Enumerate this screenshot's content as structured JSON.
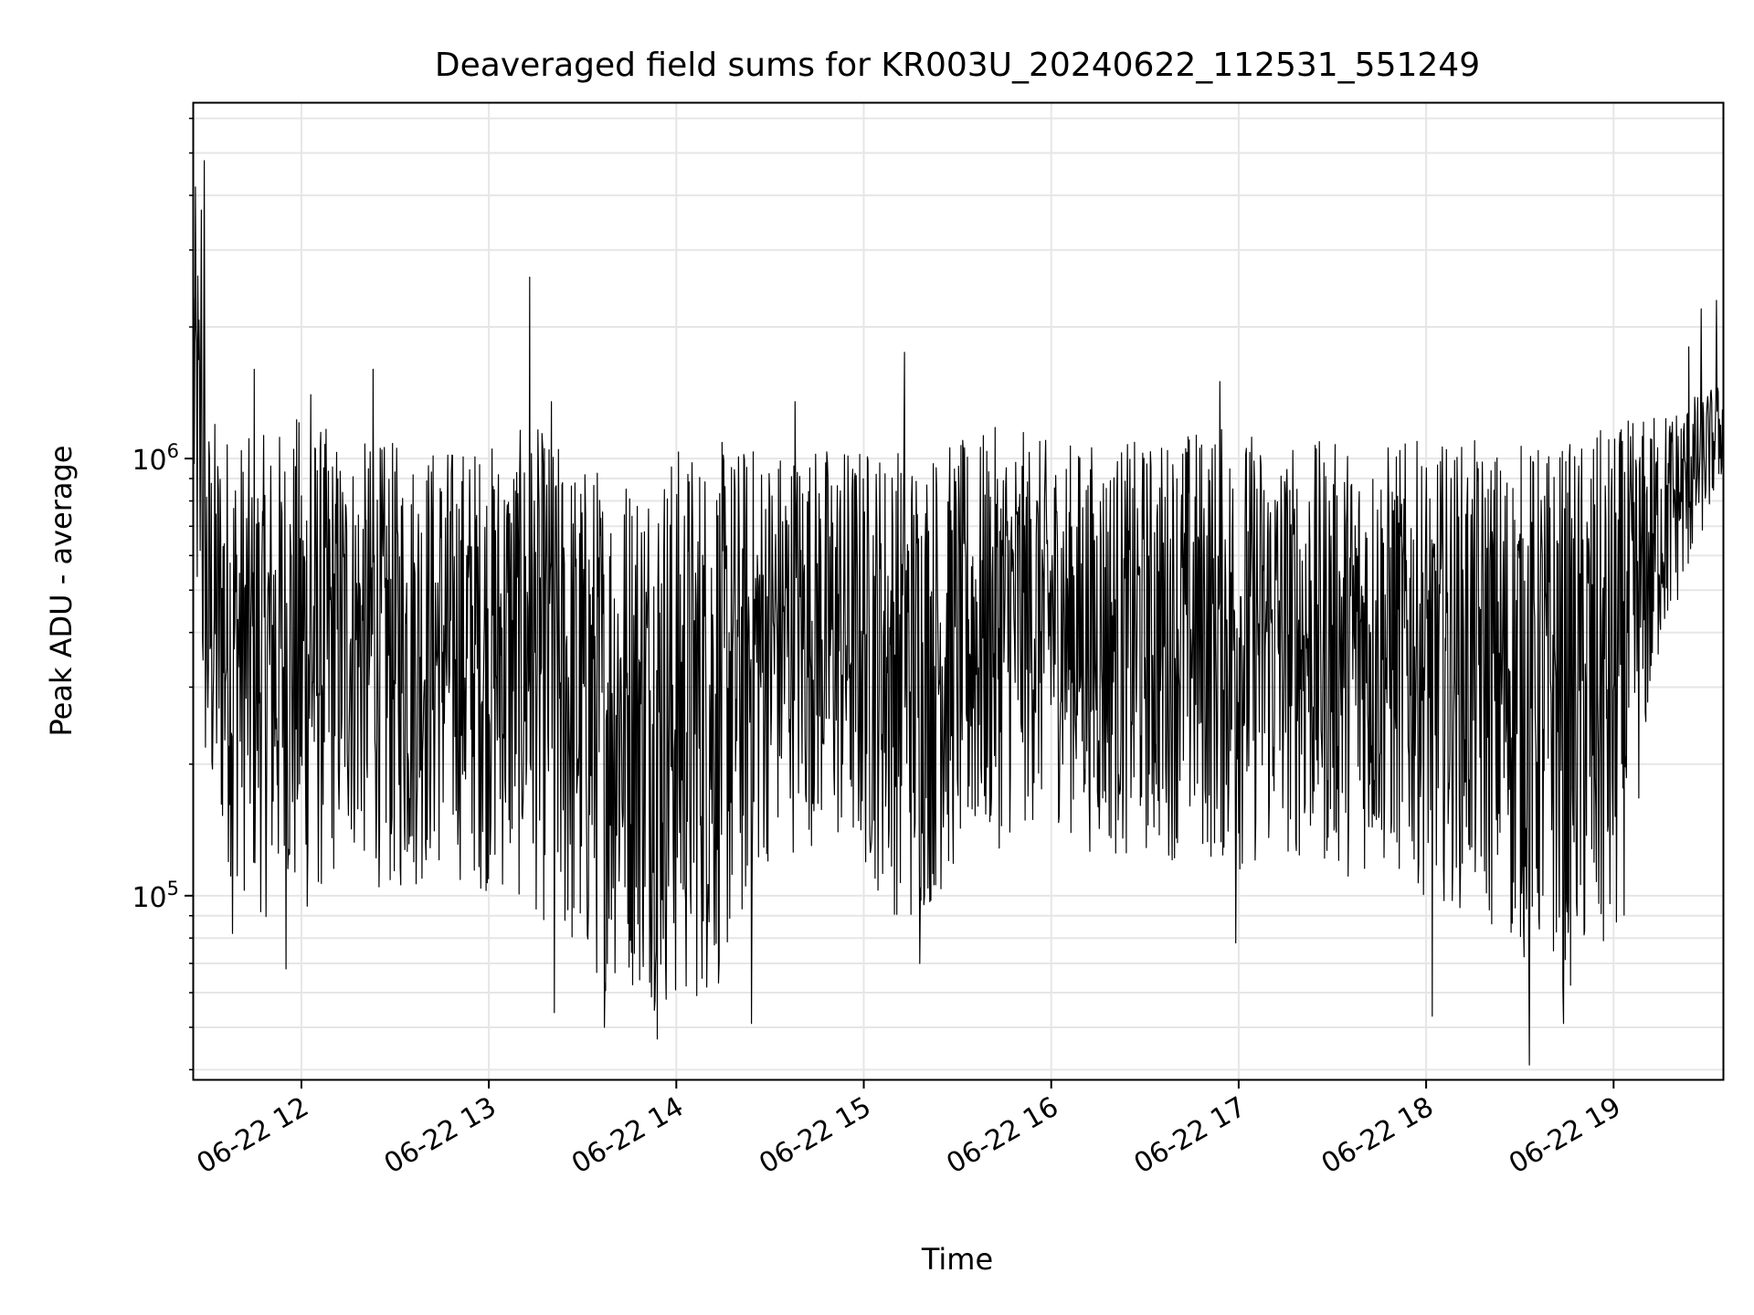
{
  "chart_data": {
    "type": "line",
    "title": "Deaveraged field sums for KR003U_20240622_112531_551249",
    "xlabel": "Time",
    "ylabel": "Peak ADU - average",
    "yscale": "log",
    "ylim": [
      38000,
      6500000
    ],
    "xlim": [
      "2024-06-22 11:25:31",
      "2024-06-22 19:35:00"
    ],
    "grid": true,
    "line_color": "#000000",
    "x_ticks": [
      {
        "value": "2024-06-22 12:00",
        "label": "06-22 12"
      },
      {
        "value": "2024-06-22 13:00",
        "label": "06-22 13"
      },
      {
        "value": "2024-06-22 14:00",
        "label": "06-22 14"
      },
      {
        "value": "2024-06-22 15:00",
        "label": "06-22 15"
      },
      {
        "value": "2024-06-22 16:00",
        "label": "06-22 16"
      },
      {
        "value": "2024-06-22 17:00",
        "label": "06-22 17"
      },
      {
        "value": "2024-06-22 18:00",
        "label": "06-22 18"
      },
      {
        "value": "2024-06-22 19:00",
        "label": "06-22 19"
      }
    ],
    "y_ticks": [
      {
        "value": 100000,
        "base": "10",
        "exp": "5"
      },
      {
        "value": 1000000,
        "base": "10",
        "exp": "6"
      }
    ],
    "series": [
      {
        "x": [
          "2024-06-22 11:25:31",
          "2024-06-22 11:30",
          "2024-06-22 11:45",
          "2024-06-22 12:00",
          "2024-06-22 12:15",
          "2024-06-22 12:30",
          "2024-06-22 12:45",
          "2024-06-22 13:00",
          "2024-06-22 13:15",
          "2024-06-22 13:30",
          "2024-06-22 13:45",
          "2024-06-22 14:00",
          "2024-06-22 14:15",
          "2024-06-22 14:30",
          "2024-06-22 14:45",
          "2024-06-22 15:00",
          "2024-06-22 15:15",
          "2024-06-22 15:30",
          "2024-06-22 15:45",
          "2024-06-22 16:00",
          "2024-06-22 16:15",
          "2024-06-22 16:30",
          "2024-06-22 16:45",
          "2024-06-22 17:00",
          "2024-06-22 17:15",
          "2024-06-22 17:30",
          "2024-06-22 17:45",
          "2024-06-22 18:00",
          "2024-06-22 18:15",
          "2024-06-22 18:30",
          "2024-06-22 18:45",
          "2024-06-22 19:00",
          "2024-06-22 19:15",
          "2024-06-22 19:35"
        ],
        "low": [
          450000,
          130000,
          90000,
          80000,
          120000,
          95000,
          110000,
          100000,
          90000,
          60000,
          60000,
          50000,
          60000,
          120000,
          130000,
          110000,
          80000,
          110000,
          130000,
          150000,
          120000,
          120000,
          120000,
          110000,
          120000,
          110000,
          110000,
          100000,
          90000,
          70000,
          60000,
          60000,
          350000,
          900000
        ],
        "high": [
          5000000,
          1300000,
          1100000,
          1300000,
          1100000,
          1100000,
          1100000,
          1100000,
          1200000,
          1000000,
          1000000,
          1100000,
          1100000,
          1100000,
          1100000,
          1100000,
          1100000,
          1100000,
          1200000,
          1100000,
          1100000,
          1100000,
          1200000,
          1200000,
          1100000,
          1100000,
          1100000,
          1100000,
          1100000,
          1100000,
          1100000,
          1200000,
          1300000,
          1500000
        ],
        "peaks": [
          {
            "x": "2024-06-22 11:29",
            "y": 4800000
          },
          {
            "x": "2024-06-22 11:28",
            "y": 3700000
          },
          {
            "x": "2024-06-22 11:45",
            "y": 1600000
          },
          {
            "x": "2024-06-22 12:03",
            "y": 1400000
          },
          {
            "x": "2024-06-22 12:23",
            "y": 1600000
          },
          {
            "x": "2024-06-22 13:13",
            "y": 2600000
          },
          {
            "x": "2024-06-22 13:20",
            "y": 1350000
          },
          {
            "x": "2024-06-22 14:38",
            "y": 1350000
          },
          {
            "x": "2024-06-22 15:13",
            "y": 1750000
          },
          {
            "x": "2024-06-22 16:54",
            "y": 1500000
          },
          {
            "x": "2024-06-22 19:24",
            "y": 1800000
          },
          {
            "x": "2024-06-22 19:28",
            "y": 2200000
          },
          {
            "x": "2024-06-22 19:33",
            "y": 2300000
          }
        ],
        "troughs": [
          {
            "x": "2024-06-22 11:38",
            "y": 82000
          },
          {
            "x": "2024-06-22 11:55",
            "y": 68000
          },
          {
            "x": "2024-06-22 13:21",
            "y": 54000
          },
          {
            "x": "2024-06-22 13:37",
            "y": 50000
          },
          {
            "x": "2024-06-22 13:54",
            "y": 47000
          },
          {
            "x": "2024-06-22 14:24",
            "y": 51000
          },
          {
            "x": "2024-06-22 15:18",
            "y": 70000
          },
          {
            "x": "2024-06-22 16:59",
            "y": 78000
          },
          {
            "x": "2024-06-22 18:02",
            "y": 53000
          },
          {
            "x": "2024-06-22 18:33",
            "y": 41000
          },
          {
            "x": "2024-06-22 18:44",
            "y": 51000
          }
        ]
      }
    ]
  }
}
